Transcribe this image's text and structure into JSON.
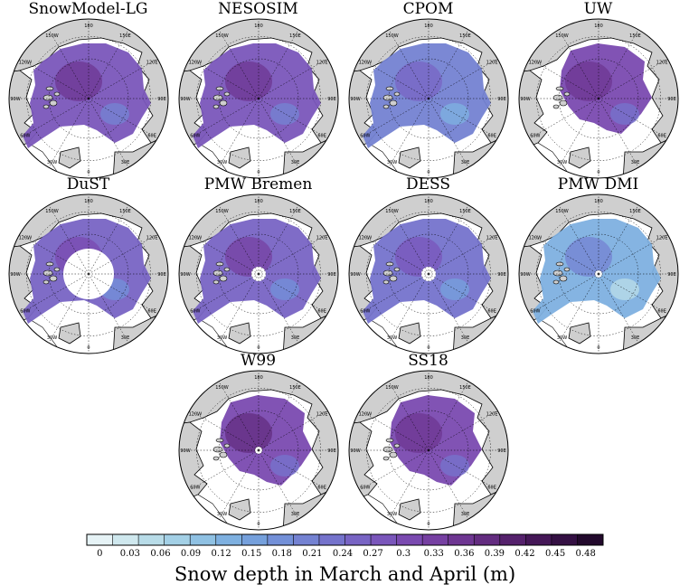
{
  "chart_data": {
    "type": "heatmap",
    "description_kind": "polar stereographic maps of Arctic snow depth",
    "colorbar": {
      "label": "Snow depth in March and April (m)",
      "ticks": [
        "0",
        "0.03",
        "0.06",
        "0.09",
        "0.12",
        "0.15",
        "0.18",
        "0.21",
        "0.24",
        "0.27",
        "0.3",
        "0.33",
        "0.36",
        "0.39",
        "0.42",
        "0.45",
        "0.48"
      ],
      "range": [
        0,
        0.51
      ],
      "colors": [
        "#e6f3f6",
        "#cfe8ee",
        "#b8dce8",
        "#a3d0e6",
        "#8fc1e3",
        "#7eb0e0",
        "#75a0dc",
        "#7390d8",
        "#7482d2",
        "#7573cc",
        "#7864c4",
        "#7a56bb",
        "#7a4ab0",
        "#7640a2",
        "#6e3692",
        "#632c80",
        "#55216c",
        "#451757",
        "#341043",
        "#22092c"
      ]
    },
    "lon_labels": [
      "180",
      "150E",
      "120E",
      "90E",
      "60E",
      "30E",
      "0",
      "30W",
      "60W",
      "90W",
      "120W",
      "150W"
    ],
    "panels": [
      {
        "title": "SnowModel-LG",
        "mean_depth": 0.3,
        "hole": false,
        "extent": "full"
      },
      {
        "title": "NESOSIM",
        "mean_depth": 0.3,
        "hole": false,
        "extent": "full"
      },
      {
        "title": "CPOM",
        "mean_depth": 0.22,
        "hole": false,
        "extent": "full"
      },
      {
        "title": "UW",
        "mean_depth": 0.32,
        "hole": false,
        "extent": "central"
      },
      {
        "title": "DuST",
        "mean_depth": 0.26,
        "hole": true,
        "hole_size": "large",
        "extent": "full"
      },
      {
        "title": "PMW Bremen",
        "mean_depth": 0.28,
        "hole": true,
        "hole_size": "small",
        "extent": "full"
      },
      {
        "title": "DESS",
        "mean_depth": 0.24,
        "hole": true,
        "hole_size": "small",
        "extent": "full"
      },
      {
        "title": "PMW DMI",
        "mean_depth": 0.15,
        "hole": true,
        "hole_size": "tiny",
        "extent": "full"
      },
      {
        "title": "W99",
        "mean_depth": 0.33,
        "hole": true,
        "hole_size": "tiny",
        "extent": "central"
      },
      {
        "title": "SS18",
        "mean_depth": 0.31,
        "hole": false,
        "extent": "central"
      }
    ]
  }
}
